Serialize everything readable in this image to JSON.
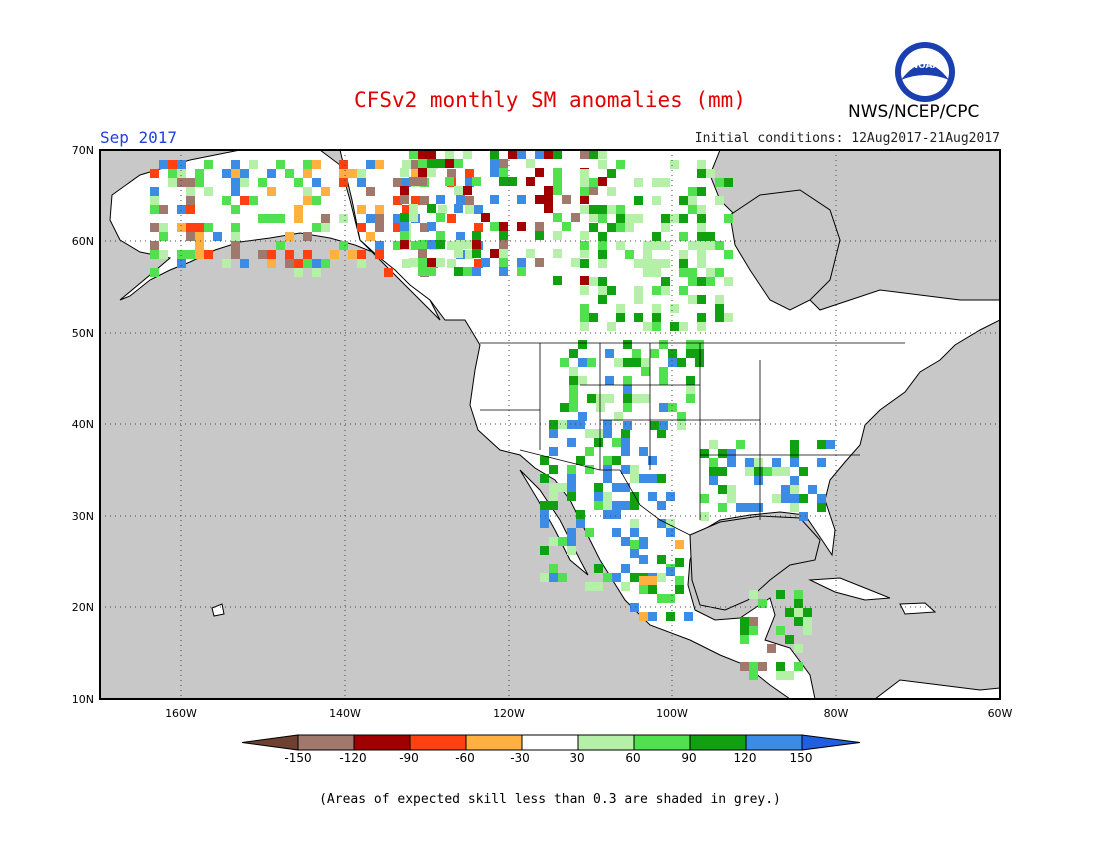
{
  "header": {
    "title": "CFSv2 monthly SM anomalies (mm)",
    "valid_month": "Sep 2017",
    "initial_conditions": "Initial conditions: 12Aug2017-21Aug2017",
    "organization": "NWS/NCEP/CPC",
    "logo_text": "NOAA"
  },
  "map": {
    "lat_labels": [
      "70N",
      "60N",
      "50N",
      "40N",
      "30N",
      "20N",
      "10N"
    ],
    "lon_labels": [
      "160W",
      "140W",
      "120W",
      "100W",
      "80W",
      "60W"
    ],
    "lat_range": [
      10,
      70
    ],
    "lon_range": [
      -170,
      -60
    ],
    "ocean_color": "#c8c8c8",
    "land_color": "#ffffff",
    "grid": "dotted"
  },
  "legend": {
    "tick_labels": [
      "-150",
      "-120",
      "-90",
      "-60",
      "-30",
      "30",
      "60",
      "90",
      "120",
      "150"
    ],
    "colors": [
      "#6e4030",
      "#a0786c",
      "#a00000",
      "#ff4010",
      "#ffb040",
      "#ffffff",
      "#b4f0a8",
      "#50e050",
      "#10a010",
      "#3c8ce6",
      "#2060e0"
    ]
  },
  "footnote": "(Areas of expected skill less than 0.3 are shaded in grey.)"
}
